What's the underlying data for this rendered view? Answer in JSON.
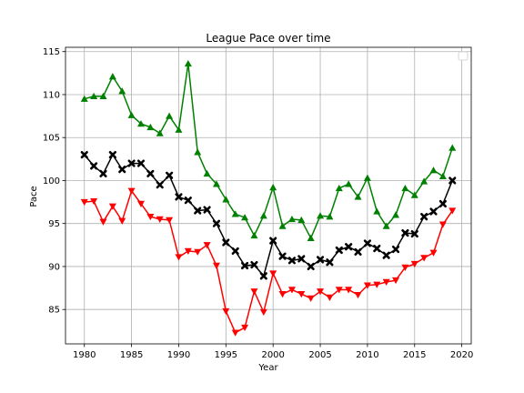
{
  "chart_data": {
    "type": "line",
    "title": "League Pace over time",
    "xlabel": "Year",
    "ylabel": "Pace",
    "xlim": [
      1978,
      2021
    ],
    "ylim": [
      81,
      115.5
    ],
    "xticks": [
      1980,
      1985,
      1990,
      1995,
      2000,
      2005,
      2010,
      2015,
      2020
    ],
    "yticks": [
      85,
      90,
      95,
      100,
      105,
      110,
      115
    ],
    "grid": true,
    "legend": "top-right, empty",
    "x": [
      1980,
      1981,
      1982,
      1983,
      1984,
      1985,
      1986,
      1987,
      1988,
      1989,
      1990,
      1991,
      1992,
      1993,
      1994,
      1995,
      1996,
      1997,
      1998,
      1999,
      2000,
      2001,
      2002,
      2003,
      2004,
      2005,
      2006,
      2007,
      2008,
      2009,
      2010,
      2011,
      2012,
      2013,
      2014,
      2015,
      2016,
      2017,
      2018,
      2019
    ],
    "series": [
      {
        "color": "#008000",
        "marker": "triangle-up",
        "values": [
          109.5,
          109.8,
          109.8,
          112.1,
          110.4,
          107.6,
          106.6,
          106.2,
          105.5,
          107.5,
          105.9,
          113.6,
          103.3,
          100.8,
          99.6,
          97.8,
          96.1,
          95.7,
          93.6,
          95.9,
          99.2,
          94.7,
          95.5,
          95.4,
          93.3,
          95.9,
          95.8,
          99.1,
          99.6,
          98.1,
          100.3,
          96.4,
          94.7,
          96.0,
          99.1,
          98.3,
          99.9,
          101.2,
          100.5,
          103.8
        ]
      },
      {
        "color": "#000000",
        "marker": "x",
        "values": [
          103.0,
          101.7,
          100.8,
          103.0,
          101.3,
          102.0,
          102.0,
          100.8,
          99.5,
          100.6,
          98.1,
          97.7,
          96.5,
          96.6,
          95.0,
          92.8,
          91.8,
          90.1,
          90.2,
          88.9,
          93.0,
          91.2,
          90.7,
          90.9,
          90.0,
          90.8,
          90.5,
          91.9,
          92.3,
          91.7,
          92.7,
          92.1,
          91.3,
          92.0,
          93.9,
          93.8,
          95.8,
          96.4,
          97.3,
          100.0
        ]
      },
      {
        "color": "#ff0000",
        "marker": "triangle-down",
        "values": [
          97.5,
          97.6,
          95.2,
          97.0,
          95.3,
          98.8,
          97.3,
          95.8,
          95.5,
          95.4,
          91.1,
          91.8,
          91.7,
          92.5,
          90.1,
          84.8,
          82.3,
          82.9,
          87.1,
          84.7,
          89.2,
          86.8,
          87.3,
          86.8,
          86.3,
          87.1,
          86.4,
          87.3,
          87.3,
          86.7,
          87.8,
          87.9,
          88.2,
          88.4,
          89.9,
          90.3,
          91.0,
          91.6,
          94.9,
          96.5
        ]
      }
    ]
  }
}
